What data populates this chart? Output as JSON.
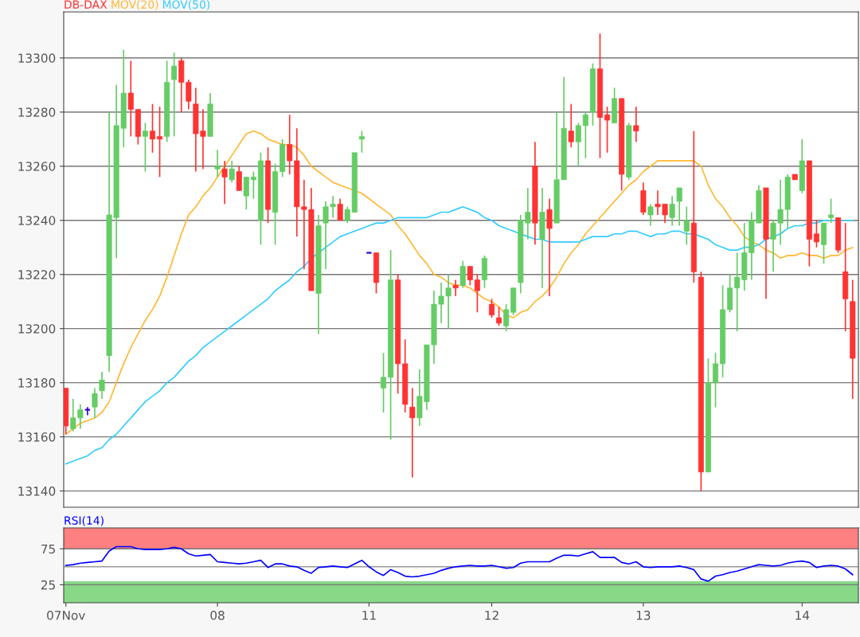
{
  "chart_data": [
    {
      "type": "candlestick",
      "categories": [
        null,
        null,
        null,
        null,
        null,
        null,
        null,
        null,
        null,
        null,
        null,
        null,
        null,
        null,
        null,
        null,
        null,
        null,
        null,
        null,
        null,
        null,
        null,
        null,
        null,
        null,
        null,
        null,
        null,
        null,
        null,
        null,
        null,
        null,
        null,
        null,
        null,
        null,
        null,
        null,
        null,
        null,
        null,
        null,
        null,
        null,
        null,
        null,
        null,
        null,
        null,
        null,
        null,
        null,
        null,
        null,
        null,
        null,
        null,
        null,
        null,
        null,
        null,
        null,
        null,
        null,
        null,
        null,
        null,
        null,
        null,
        null,
        null,
        null,
        null,
        null,
        null,
        null,
        null,
        null,
        null,
        null,
        null,
        null,
        null,
        null,
        null,
        null,
        null,
        null,
        null,
        null,
        null,
        null,
        null,
        null,
        null,
        null,
        null,
        null,
        null,
        null,
        null,
        null,
        null,
        null,
        null,
        null,
        null,
        null
      ],
      "ylim": [
        13134,
        13317
      ],
      "yticks": [
        13140,
        13160,
        13180,
        13200,
        13220,
        13240,
        13260,
        13280,
        13300
      ],
      "tick_labels": "y",
      "grid": "y",
      "legend": "top left",
      "series": [
        {
          "name": "DB-DAX",
          "type": "candlestick",
          "color": "#ff3333",
          "ohlc": [
            [
              13178,
              13178,
              13161,
              13164
            ],
            [
              13163,
              13174,
              13162,
              13167
            ],
            [
              13167,
              13172,
              13163,
              13170
            ],
            [
              13170,
              13171,
              13168,
              13170
            ],
            [
              13171,
              13178,
              13167,
              13176
            ],
            [
              13177,
              13184,
              13174,
              13181
            ],
            [
              13190,
              13280,
              13184,
              13242
            ],
            [
              13241,
              13290,
              13226,
              13275
            ],
            [
              13274,
              13303,
              13267,
              13287
            ],
            [
              13287,
              13299,
              13271,
              13281
            ],
            [
              13281,
              13281,
              13268,
              13271
            ],
            [
              13271,
              13276,
              13258,
              13273
            ],
            [
              13273,
              13283,
              13265,
              13270
            ],
            [
              13271,
              13282,
              13256,
              13270
            ],
            [
              13271,
              13299,
              13269,
              13291
            ],
            [
              13292,
              13302,
              13271,
              13297
            ],
            [
              13299,
              13300,
              13280,
              13291
            ],
            [
              13291,
              13292,
              13281,
              13284
            ],
            [
              13283,
              13289,
              13258,
              13272
            ],
            [
              13273,
              13281,
              13259,
              13271
            ],
            [
              13271,
              13287,
              13271,
              13283
            ],
            [
              13259,
              13266,
              13256,
              13260
            ],
            [
              13259,
              13262,
              13246,
              13256
            ],
            [
              13255,
              13262,
              13254,
              13259
            ],
            [
              13258,
              13260,
              13251,
              13251
            ],
            [
              13249,
              13256,
              13244,
              13256
            ],
            [
              13255,
              13258,
              13248,
              13256
            ],
            [
              13240,
              13265,
              13231,
              13262
            ],
            [
              13262,
              13267,
              13239,
              13244
            ],
            [
              13243,
              13261,
              13231,
              13258
            ],
            [
              13258,
              13270,
              13256,
              13268
            ],
            [
              13268,
              13279,
              13257,
              13262
            ],
            [
              13262,
              13274,
              13234,
              13245
            ],
            [
              13245,
              13255,
              13222,
              13244
            ],
            [
              13244,
              13252,
              13214,
              13214
            ],
            [
              13213,
              13242,
              13198,
              13238
            ],
            [
              13239,
              13247,
              13222,
              13245
            ],
            [
              13245,
              13249,
              13241,
              13246
            ],
            [
              13246,
              13248,
              13240,
              13240
            ],
            [
              13240,
              13245,
              13239,
              13244
            ],
            [
              13243,
              13265,
              13243,
              13265
            ],
            [
              13270,
              13273,
              13265,
              13271
            ],
            [
              13228,
              13228,
              13228,
              13228
            ],
            [
              13228,
              13228,
              13213,
              13217
            ],
            [
              13178,
              13191,
              13169,
              13182
            ],
            [
              13182,
              13229,
              13159,
              13218
            ],
            [
              13218,
              13220,
              13176,
              13187
            ],
            [
              13187,
              13196,
              13169,
              13172
            ],
            [
              13171,
              13178,
              13145,
              13167
            ],
            [
              13167,
              13185,
              13164,
              13175
            ],
            [
              13173,
              13194,
              13170,
              13194
            ],
            [
              13194,
              13214,
              13187,
              13209
            ],
            [
              13209,
              13217,
              13202,
              13212
            ],
            [
              13212,
              13220,
              13200,
              13215
            ],
            [
              13216,
              13218,
              13212,
              13215
            ],
            [
              13216,
              13225,
              13215,
              13223
            ],
            [
              13223,
              13223,
              13216,
              13218
            ],
            [
              13218,
              13220,
              13206,
              13214
            ],
            [
              13218,
              13227,
              13215,
              13226
            ],
            [
              13209,
              13211,
              13204,
              13205
            ],
            [
              13204,
              13208,
              13201,
              13202
            ],
            [
              13201,
              13209,
              13199,
              13207
            ],
            [
              13206,
              13215,
              13205,
              13215
            ],
            [
              13217,
              13242,
              13213,
              13240
            ],
            [
              13239,
              13252,
              13233,
              13243
            ],
            [
              13260,
              13269,
              13231,
              13239
            ],
            [
              13233,
              13252,
              13215,
              13243
            ],
            [
              13244,
              13248,
              13212,
              13237
            ],
            [
              13239,
              13280,
              13239,
              13255
            ],
            [
              13255,
              13293,
              13255,
              13274
            ],
            [
              13273,
              13283,
              13267,
              13269
            ],
            [
              13269,
              13276,
              13260,
              13275
            ],
            [
              13275,
              13280,
              13263,
              13279
            ],
            [
              13280,
              13298,
              13275,
              13296
            ],
            [
              13296,
              13309,
              13263,
              13278
            ],
            [
              13279,
              13282,
              13265,
              13277
            ],
            [
              13276,
              13289,
              13276,
              13285
            ],
            [
              13285,
              13285,
              13251,
              13257
            ],
            [
              13256,
              13276,
              13255,
              13275
            ],
            [
              13275,
              13282,
              13269,
              13273
            ],
            [
              13251,
              13254,
              13242,
              13243
            ],
            [
              13242,
              13246,
              13238,
              13245
            ],
            [
              13246,
              13251,
              13242,
              13245
            ],
            [
              13246,
              13246,
              13239,
              13242
            ],
            [
              13241,
              13249,
              13238,
              13246
            ],
            [
              13247,
              13252,
              13238,
              13252
            ],
            [
              13236,
              13245,
              13231,
              13240
            ],
            [
              13239,
              13273,
              13217,
              13221
            ],
            [
              13219,
              13221,
              13140,
              13147
            ],
            [
              13147,
              13189,
              13147,
              13180
            ],
            [
              13180,
              13191,
              13171,
              13187
            ],
            [
              13187,
              13216,
              13182,
              13207
            ],
            [
              13207,
              13220,
              13206,
              13215
            ],
            [
              13215,
              13228,
              13199,
              13219
            ],
            [
              13218,
              13239,
              13214,
              13228
            ],
            [
              13228,
              13243,
              13218,
              13240
            ],
            [
              13239,
              13253,
              13239,
              13251
            ],
            [
              13252,
              13252,
              13211,
              13233
            ],
            [
              13233,
              13240,
              13221,
              13239
            ],
            [
              13239,
              13255,
              13231,
              13244
            ],
            [
              13244,
              13257,
              13237,
              13256
            ],
            [
              13257,
              13257,
              13255,
              13255
            ],
            [
              13251,
              13270,
              13250,
              13262
            ],
            [
              13262,
              13262,
              13223,
              13233
            ],
            [
              13235,
              13240,
              13230,
              13232
            ],
            [
              13231,
              13239,
              13224,
              13239
            ],
            [
              13241,
              13248,
              13239,
              13242
            ],
            [
              13241,
              13241,
              13228,
              13229
            ],
            [
              13221,
              13239,
              13199,
              13211
            ],
            [
              13210,
              13218,
              13174,
              13189
            ]
          ],
          "colors": [
            "#ff3333",
            "#66cc66",
            "#66cc66",
            "#3300cc",
            "#66cc66",
            "#66cc66",
            "#66cc66",
            "#66cc66",
            "#66cc66",
            "#ff3333",
            "#ff3333",
            "#66cc66",
            "#ff3333",
            "#ff3333",
            "#66cc66",
            "#66cc66",
            "#ff3333",
            "#ff3333",
            "#ff3333",
            "#ff3333",
            "#66cc66",
            "#66cc66",
            "#ff3333",
            "#66cc66",
            "#ff3333",
            "#66cc66",
            "#66cc66",
            "#66cc66",
            "#ff3333",
            "#66cc66",
            "#66cc66",
            "#ff3333",
            "#ff3333",
            "#ff3333",
            "#ff3333",
            "#66cc66",
            "#66cc66",
            "#66cc66",
            "#ff3333",
            "#66cc66",
            "#66cc66",
            "#66cc66",
            "#3300cc",
            "#ff3333",
            "#66cc66",
            "#66cc66",
            "#ff3333",
            "#ff3333",
            "#ff3333",
            "#66cc66",
            "#66cc66",
            "#66cc66",
            "#66cc66",
            "#66cc66",
            "#ff3333",
            "#66cc66",
            "#ff3333",
            "#ff3333",
            "#66cc66",
            "#ff3333",
            "#ff3333",
            "#66cc66",
            "#66cc66",
            "#66cc66",
            "#66cc66",
            "#ff3333",
            "#66cc66",
            "#ff3333",
            "#66cc66",
            "#66cc66",
            "#ff3333",
            "#66cc66",
            "#66cc66",
            "#66cc66",
            "#ff3333",
            "#ff3333",
            "#66cc66",
            "#ff3333",
            "#66cc66",
            "#ff3333",
            "#ff3333",
            "#66cc66",
            "#ff3333",
            "#ff3333",
            "#66cc66",
            "#66cc66",
            "#66cc66",
            "#ff3333",
            "#ff3333",
            "#66cc66",
            "#66cc66",
            "#66cc66",
            "#66cc66",
            "#66cc66",
            "#66cc66",
            "#66cc66",
            "#66cc66",
            "#ff3333",
            "#66cc66",
            "#66cc66",
            "#66cc66",
            "#ff3333",
            "#66cc66",
            "#ff3333",
            "#ff3333",
            "#66cc66",
            "#66cc66",
            "#ff3333",
            "#ff3333",
            "#ff3333"
          ]
        },
        {
          "name": "MOV(20)",
          "type": "line",
          "color": "#ffb833",
          "values": [
            13161,
            13163,
            13165,
            13166,
            13167,
            13169,
            13173,
            13180,
            13187,
            13193,
            13198,
            13203,
            13207,
            13212,
            13219,
            13227,
            13235,
            13242,
            13245,
            13249,
            13252,
            13256,
            13260,
            13264,
            13268,
            13272,
            13273,
            13272,
            13270,
            13269,
            13268,
            13268,
            13267,
            13264,
            13260,
            13258,
            13256,
            13254,
            13253,
            13252,
            13251,
            13250,
            13248,
            13246,
            13244,
            13242,
            13238,
            13235,
            13231,
            13227,
            13224,
            13220,
            13219,
            13217,
            13216,
            13216,
            13215,
            13213,
            13211,
            13210,
            13208,
            13205,
            13204,
            13206,
            13207,
            13210,
            13212,
            13215,
            13219,
            13224,
            13228,
            13231,
            13235,
            13238,
            13241,
            13244,
            13247,
            13250,
            13253,
            13255,
            13258,
            13260,
            13262,
            13262,
            13262,
            13262,
            13262,
            13262,
            13260,
            13253,
            13248,
            13245,
            13241,
            13238,
            13234,
            13232,
            13231,
            13229,
            13228,
            13226,
            13227,
            13227,
            13228,
            13227,
            13227,
            13226,
            13227,
            13227,
            13229,
            13230
          ]
        },
        {
          "name": "MOV(50)",
          "type": "line",
          "color": "#33ccff",
          "values": [
            13150,
            13151,
            13152,
            13153,
            13155,
            13156,
            13159,
            13161,
            13164,
            13167,
            13170,
            13173,
            13175,
            13177,
            13180,
            13182,
            13185,
            13188,
            13190,
            13193,
            13195,
            13197,
            13199,
            13201,
            13203,
            13205,
            13207,
            13209,
            13211,
            13214,
            13216,
            13218,
            13221,
            13223,
            13226,
            13228,
            13230,
            13232,
            13234,
            13235,
            13236,
            13237,
            13238,
            13239,
            13239,
            13240,
            13241,
            13241,
            13241,
            13241,
            13241,
            13242,
            13243,
            13243,
            13244,
            13245,
            13244,
            13243,
            13241,
            13240,
            13238,
            13237,
            13236,
            13235,
            13234,
            13233,
            13233,
            13232,
            13232,
            13232,
            13232,
            13232,
            13233,
            13234,
            13234,
            13234,
            13235,
            13235,
            13236,
            13236,
            13235,
            13234,
            13235,
            13235,
            13236,
            13236,
            13235,
            13235,
            13234,
            13233,
            13231,
            13230,
            13229,
            13229,
            13230,
            13230,
            13231,
            13233,
            13234,
            13235,
            13237,
            13238,
            13238,
            13239,
            13239,
            13240,
            13240,
            13240,
            13240,
            13240
          ]
        }
      ]
    },
    {
      "type": "line",
      "categories": [
        "07Nov",
        null,
        null,
        null,
        null,
        null,
        null,
        null,
        null,
        null,
        null,
        null,
        null,
        null,
        null,
        null,
        null,
        null,
        null,
        null,
        null,
        "08",
        null,
        null,
        null,
        null,
        null,
        null,
        null,
        null,
        null,
        null,
        null,
        null,
        null,
        null,
        null,
        null,
        null,
        null,
        null,
        null,
        "11",
        null,
        null,
        null,
        null,
        null,
        null,
        null,
        null,
        null,
        null,
        null,
        null,
        null,
        null,
        null,
        null,
        "12",
        null,
        null,
        null,
        null,
        null,
        null,
        null,
        null,
        null,
        null,
        null,
        null,
        null,
        null,
        null,
        null,
        null,
        null,
        null,
        null,
        "13",
        null,
        null,
        null,
        null,
        null,
        null,
        null,
        null,
        null,
        null,
        null,
        null,
        null,
        null,
        null,
        null,
        null,
        null,
        null,
        null,
        null,
        "14",
        null,
        null,
        null,
        null,
        null,
        null,
        null
      ],
      "ylim": [
        0,
        104
      ],
      "yticks": [
        25,
        75
      ],
      "grid": "y",
      "legend": "top left",
      "bands": [
        {
          "axis": "y",
          "from": 75,
          "to": 104,
          "color": "#ff8080"
        },
        {
          "axis": "y",
          "from": 0,
          "to": 30,
          "color": "#88d888"
        }
      ],
      "ref_lines": [
        {
          "axis": "y",
          "value": 50,
          "color": "#999999"
        }
      ],
      "series": [
        {
          "name": "RSI(14)",
          "color": "#0000ff",
          "values": [
            52,
            53,
            55,
            56,
            57,
            58,
            72,
            78,
            78,
            78,
            75,
            74,
            74,
            74,
            75,
            77,
            75,
            68,
            65,
            66,
            67,
            57,
            56,
            55,
            54,
            55,
            57,
            59,
            49,
            54,
            54,
            51,
            50,
            45,
            41,
            49,
            50,
            51,
            50,
            49,
            54,
            59,
            50,
            43,
            38,
            46,
            42,
            37,
            36,
            37,
            39,
            41,
            45,
            48,
            50,
            51,
            52,
            51,
            51,
            52,
            50,
            48,
            49,
            55,
            57,
            57,
            57,
            57,
            62,
            66,
            66,
            65,
            68,
            71,
            63,
            63,
            63,
            56,
            54,
            57,
            50,
            49,
            50,
            50,
            50,
            51,
            49,
            46,
            33,
            30,
            37,
            39,
            42,
            44,
            47,
            50,
            53,
            52,
            51,
            52,
            55,
            57,
            58,
            56,
            49,
            51,
            52,
            51,
            47,
            39
          ]
        }
      ]
    }
  ]
}
